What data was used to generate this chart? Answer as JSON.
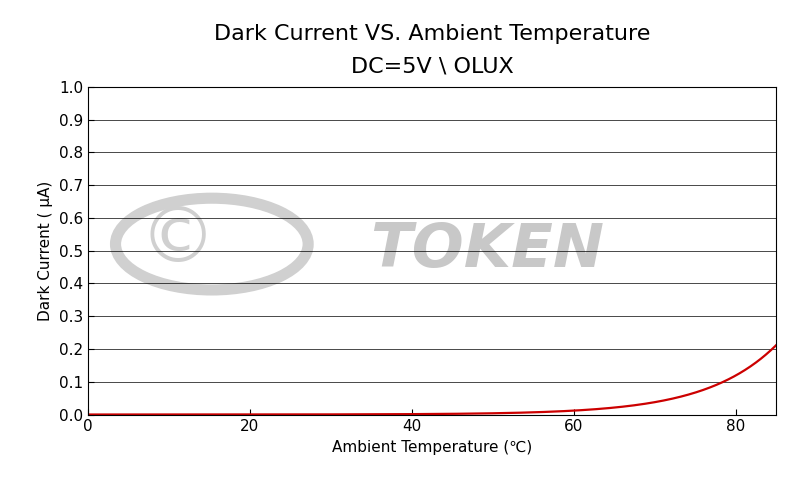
{
  "title": "Dark Current VS. Ambient Temperature",
  "subtitle": "DC=5V \\ OLUX",
  "xlabel": "Ambient Temperature (℃)",
  "ylabel": "Dark Current ( μA)",
  "xlim": [
    0,
    85
  ],
  "ylim": [
    0,
    1.0
  ],
  "xticks": [
    0,
    20,
    40,
    60,
    80
  ],
  "yticks": [
    0,
    0.1,
    0.2,
    0.3,
    0.4,
    0.5,
    0.6,
    0.7,
    0.8,
    0.9,
    1.0
  ],
  "line_color": "#cc0000",
  "line_width": 1.6,
  "bg_color": "#ffffff",
  "plot_bg_color": "#ffffff",
  "title_fontsize": 16,
  "subtitle_fontsize": 12,
  "label_fontsize": 11,
  "tick_fontsize": 11,
  "curve_A": 1.2e-05,
  "curve_B": 0.115
}
